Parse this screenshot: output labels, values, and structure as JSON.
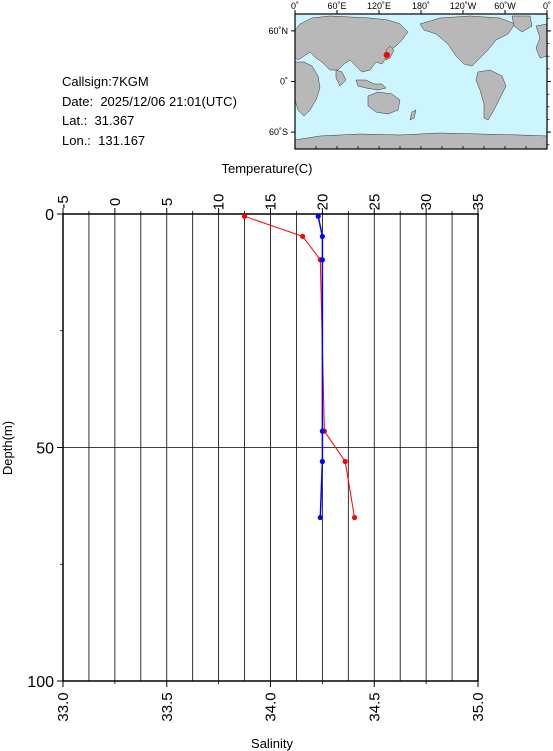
{
  "station": {
    "callsign_label": "Callsign:",
    "callsign": "7KGM",
    "date_label": "Date:",
    "date": "2025/12/06 21:01(UTC)",
    "lat_label": "Lat.:",
    "lat": "31.367",
    "lon_label": "Lon.:",
    "lon": "131.167"
  },
  "map": {
    "top_ticks": [
      "0˚",
      "60˚E",
      "120˚E",
      "180˚",
      "120˚W",
      "60˚W",
      "0˚"
    ],
    "left_ticks": [
      "60˚N",
      "0˚",
      "60˚S"
    ],
    "ocean_color": "#ccf5ff",
    "land_color": "#b8b8b8",
    "marker_color": "#ff0000",
    "station_lon": 131.167,
    "station_lat": 31.367
  },
  "chart_data": {
    "type": "line",
    "top_axis": {
      "label": "Temperature(C)",
      "range": [
        -5,
        35
      ],
      "ticks": [
        -5,
        0,
        5,
        10,
        15,
        20,
        25,
        30,
        35
      ],
      "tick_labels": [
        "-5",
        "0",
        "5",
        "10",
        "15",
        "20",
        "25",
        "30",
        "35"
      ]
    },
    "bottom_axis": {
      "label": "Salinity",
      "range": [
        33.0,
        35.0
      ],
      "ticks": [
        33.0,
        33.5,
        34.0,
        34.5,
        35.0
      ],
      "tick_labels": [
        "33.0",
        "33.5",
        "34.0",
        "34.5",
        "35.0"
      ]
    },
    "y_axis": {
      "label": "Depth(m)",
      "range": [
        0,
        100
      ],
      "inverted": true,
      "ticks": [
        0,
        50,
        100
      ],
      "tick_labels": [
        "0",
        "50",
        "100"
      ]
    },
    "grid": "vertical lines every 2.5 C; horizontal line at 50 m",
    "series": [
      {
        "color": "#ff0000",
        "axis": "top",
        "points": [
          {
            "x": 12.5,
            "y": 0.5
          },
          {
            "x": 18.1,
            "y": 4.8
          },
          {
            "x": 19.8,
            "y": 9.8
          },
          {
            "x": 20.2,
            "y": 46.5
          },
          {
            "x": 22.2,
            "y": 53.0
          },
          {
            "x": 23.1,
            "y": 65.0
          }
        ]
      },
      {
        "color": "#0000ff",
        "axis": "bottom",
        "points": [
          {
            "x": 34.23,
            "y": 0.5
          },
          {
            "x": 34.25,
            "y": 4.8
          },
          {
            "x": 34.25,
            "y": 9.8
          },
          {
            "x": 34.25,
            "y": 46.5
          },
          {
            "x": 34.25,
            "y": 53.0
          },
          {
            "x": 34.24,
            "y": 65.0
          }
        ]
      }
    ]
  }
}
